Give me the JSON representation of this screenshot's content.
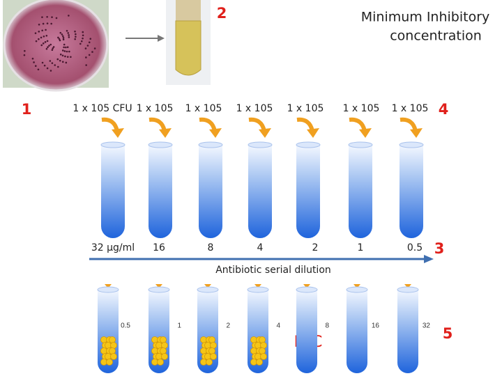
{
  "markers": {
    "culture": "1",
    "broth": "2",
    "dilution": "3",
    "inoculum": "4",
    "result": "5"
  },
  "title": [
    "Minimum Inhibitory",
    "concentration"
  ],
  "inoculum": [
    "1 x 105 CFU",
    "1 x 105",
    "1 x 105",
    "1 x 105",
    "1 x 105",
    "1 x 105",
    "1 x 105"
  ],
  "concentrations": [
    "32 µg/ml",
    "16",
    "8",
    "4",
    "2",
    "1",
    "0.5"
  ],
  "dilution_label": "Antibiotic serial dilution",
  "result_concentrations": [
    "0.5",
    "1",
    "2",
    "4",
    "8",
    "16",
    "32"
  ],
  "mic_label": "MIC"
}
